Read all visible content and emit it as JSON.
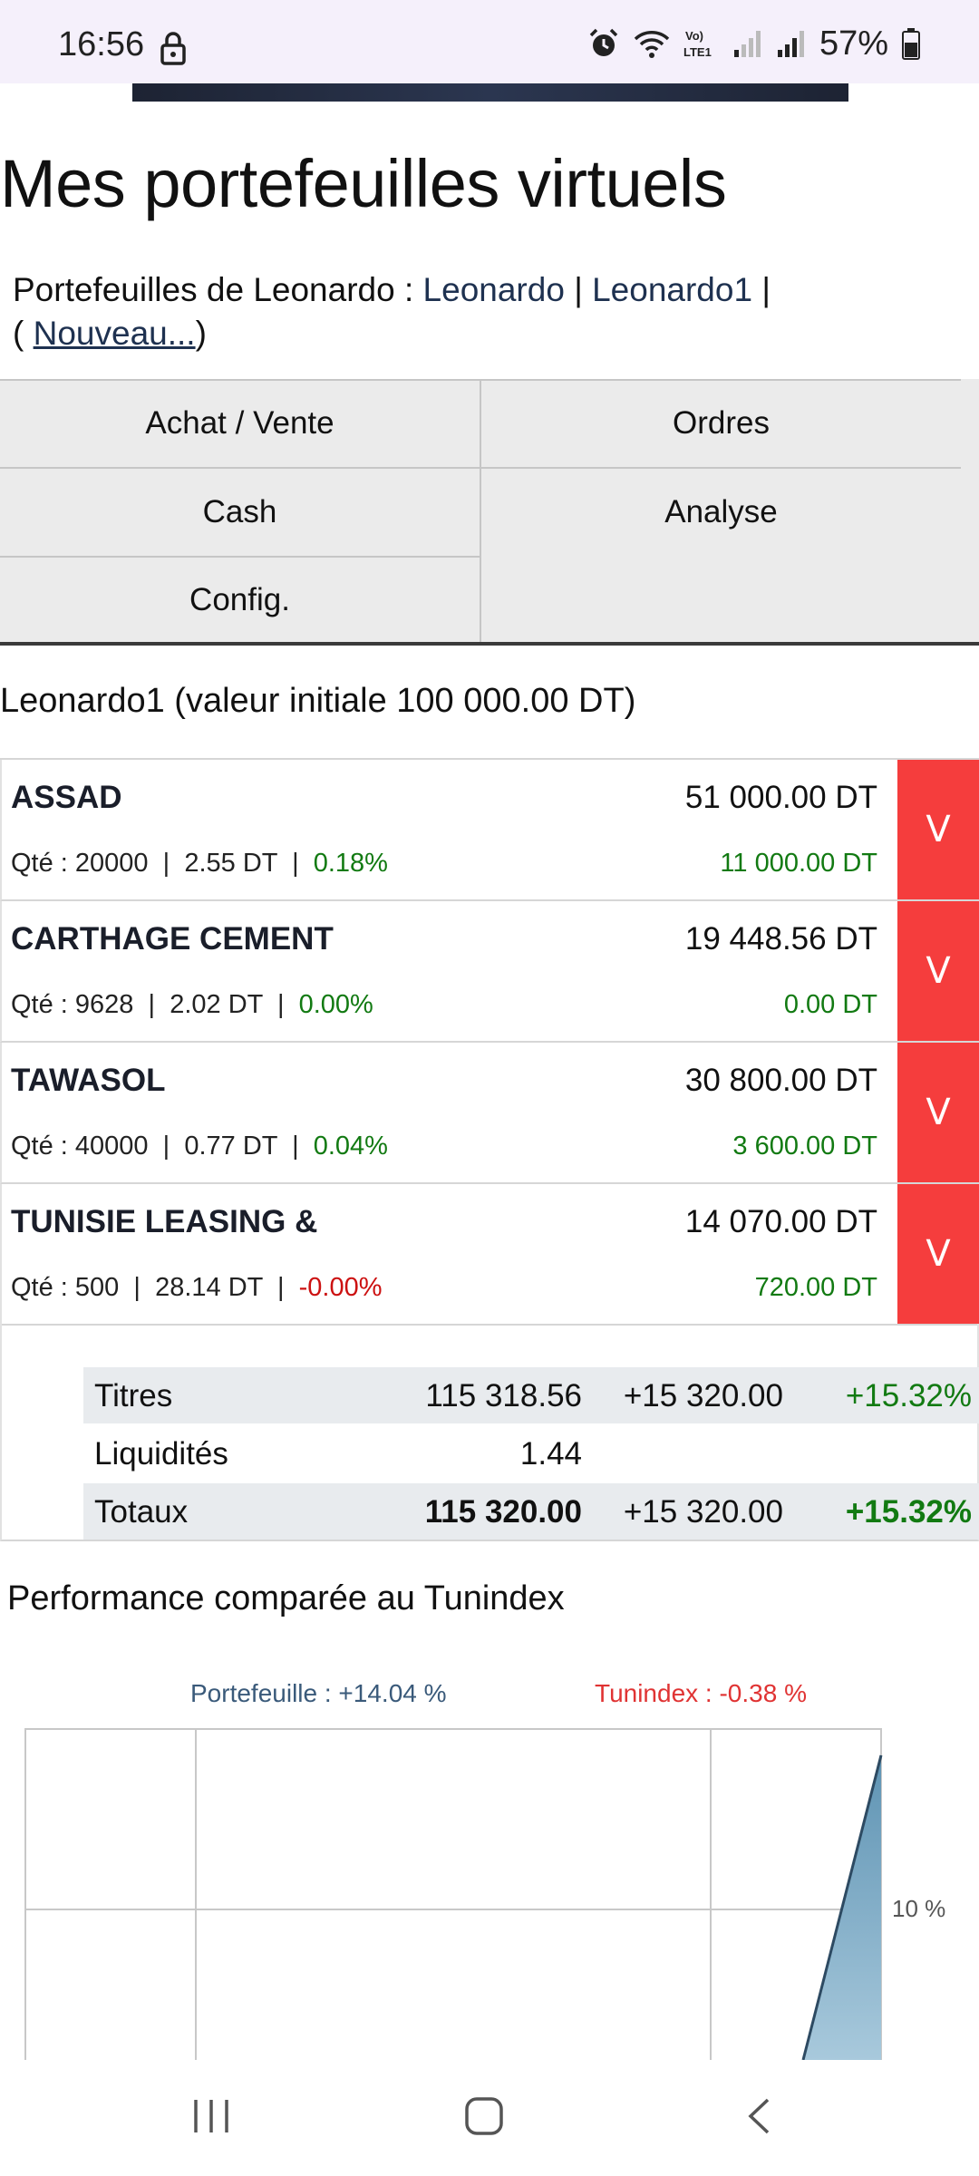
{
  "status_bar": {
    "time": "16:56",
    "battery": "57%",
    "icons": [
      "lock-icon",
      "alarm-icon",
      "wifi-icon",
      "volte-icon",
      "signal-icon",
      "battery-icon"
    ]
  },
  "page": {
    "title": "Mes portefeuilles virtuels",
    "owner_prefix": "Portefeuilles de ",
    "owner_name": "Leonardo",
    "owner_sep": " : ",
    "portfolios": [
      "Leonardo",
      "Leonardo1"
    ],
    "pipe": " | ",
    "new_open": "( ",
    "new_label": "Nouveau...",
    "new_close": ")"
  },
  "tabs": {
    "buy_sell": "Achat / Vente",
    "orders": "Ordres",
    "cash": "Cash",
    "analysis": "Analyse",
    "config": "Config."
  },
  "portfolio": {
    "name": "Leonardo1",
    "initial": "(valeur initiale 100 000.00 DT)"
  },
  "holdings": [
    {
      "name": "ASSAD",
      "value": "51 000.00 DT",
      "qty": "Qté : 20000",
      "price": "2.55 DT",
      "pct": "0.18%",
      "pct_sign": "pos",
      "gain": "11 000.00 DT",
      "sell": "V"
    },
    {
      "name": "CARTHAGE CEMENT",
      "value": "19 448.56 DT",
      "qty": "Qté : 9628",
      "price": "2.02 DT",
      "pct": "0.00%",
      "pct_sign": "pos",
      "gain": "0.00 DT",
      "sell": "V"
    },
    {
      "name": "TAWASOL",
      "value": "30 800.00 DT",
      "qty": "Qté : 40000",
      "price": "0.77 DT",
      "pct": "0.04%",
      "pct_sign": "pos",
      "gain": "3 600.00 DT",
      "sell": "V"
    },
    {
      "name": "TUNISIE LEASING &",
      "value": "14 070.00 DT",
      "qty": "Qté : 500",
      "price": "28.14 DT",
      "pct": "-0.00%",
      "pct_sign": "neg",
      "gain": "720.00 DT",
      "sell": "V"
    }
  ],
  "totals": {
    "titres": {
      "label": "Titres",
      "amount": "115 318.56",
      "change": "+15 320.00",
      "pct": "+15.32%"
    },
    "liquidites": {
      "label": "Liquidités",
      "amount": "1.44"
    },
    "totaux": {
      "label": "Totaux",
      "amount": "115 320.00",
      "change": "+15 320.00",
      "pct": "+15.32%"
    }
  },
  "performance": {
    "title": "Performance comparée au Tunindex"
  },
  "chart_data": {
    "type": "area",
    "series": [
      {
        "name": "Portefeuille : +14.04 %",
        "color": "#6f9fbd"
      },
      {
        "name": "Tunindex : -0.38 %",
        "color": "#e03333"
      }
    ],
    "y_tick_labels": [
      "10 %"
    ],
    "grid": true
  },
  "colors": {
    "sell_button": "#f53d3d",
    "positive": "#127a12",
    "negative": "#cc1111",
    "link": "#1e3150"
  }
}
